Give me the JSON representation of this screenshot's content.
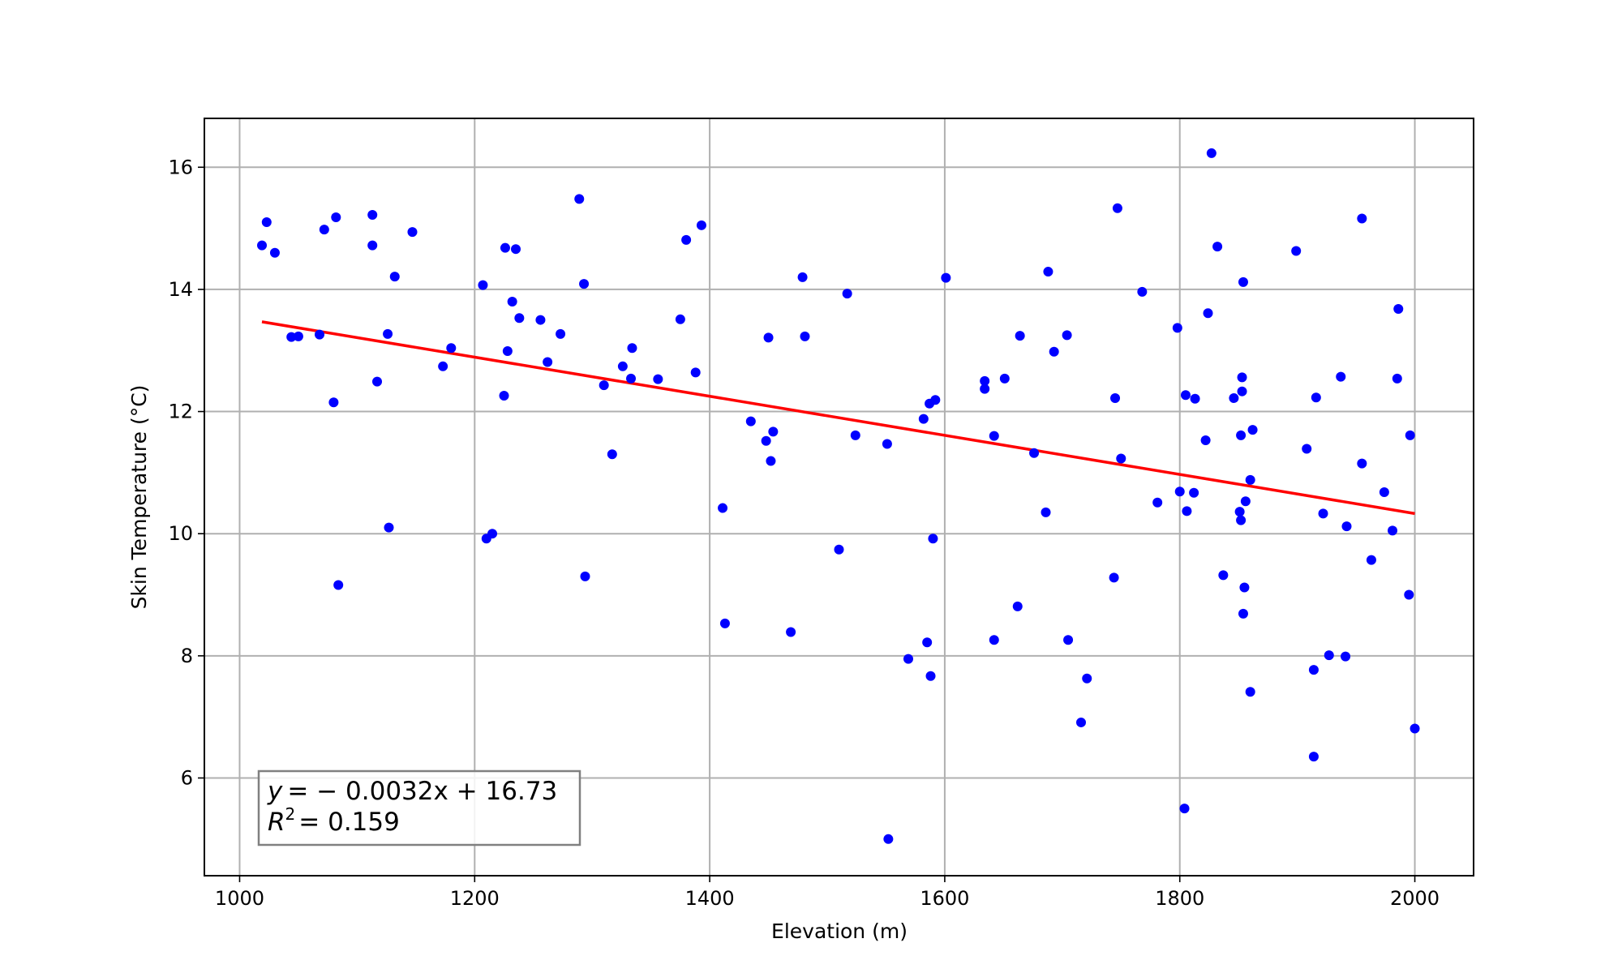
{
  "chart_data": {
    "type": "scatter",
    "xlabel": "Elevation (m)",
    "ylabel": "Skin Temperature (°C)",
    "xlim": [
      970,
      2050
    ],
    "ylim": [
      4.4,
      16.8
    ],
    "xticks": [
      1000,
      1200,
      1400,
      1600,
      1800,
      2000
    ],
    "yticks": [
      6,
      8,
      10,
      12,
      14,
      16
    ],
    "grid": true,
    "point_color": "#0000ff",
    "line_color": "#ff0000",
    "points": [
      [
        1019,
        14.72
      ],
      [
        1023,
        15.1
      ],
      [
        1030,
        14.6
      ],
      [
        1044,
        13.22
      ],
      [
        1050,
        13.23
      ],
      [
        1068,
        13.26
      ],
      [
        1072,
        14.98
      ],
      [
        1080,
        12.15
      ],
      [
        1082,
        15.18
      ],
      [
        1084,
        9.16
      ],
      [
        1113,
        15.22
      ],
      [
        1113,
        14.72
      ],
      [
        1117,
        12.49
      ],
      [
        1126,
        13.27
      ],
      [
        1127,
        10.1
      ],
      [
        1132,
        14.21
      ],
      [
        1147,
        14.94
      ],
      [
        1173,
        12.74
      ],
      [
        1180,
        13.04
      ],
      [
        1207,
        14.07
      ],
      [
        1210,
        9.92
      ],
      [
        1215,
        10.0
      ],
      [
        1225,
        12.26
      ],
      [
        1226,
        14.68
      ],
      [
        1228,
        12.99
      ],
      [
        1232,
        13.8
      ],
      [
        1235,
        14.66
      ],
      [
        1238,
        13.53
      ],
      [
        1256,
        13.5
      ],
      [
        1262,
        12.81
      ],
      [
        1273,
        13.27
      ],
      [
        1289,
        15.48
      ],
      [
        1293,
        14.09
      ],
      [
        1294,
        9.3
      ],
      [
        1310,
        12.43
      ],
      [
        1317,
        11.3
      ],
      [
        1326,
        12.74
      ],
      [
        1333,
        12.54
      ],
      [
        1334,
        13.04
      ],
      [
        1356,
        12.53
      ],
      [
        1375,
        13.51
      ],
      [
        1380,
        14.81
      ],
      [
        1388,
        12.64
      ],
      [
        1393,
        15.05
      ],
      [
        1411,
        10.42
      ],
      [
        1413,
        8.53
      ],
      [
        1435,
        11.84
      ],
      [
        1448,
        11.52
      ],
      [
        1450,
        13.21
      ],
      [
        1452,
        11.19
      ],
      [
        1454,
        11.67
      ],
      [
        1469,
        8.39
      ],
      [
        1479,
        14.2
      ],
      [
        1481,
        13.23
      ],
      [
        1510,
        9.74
      ],
      [
        1517,
        13.93
      ],
      [
        1524,
        11.61
      ],
      [
        1551,
        11.47
      ],
      [
        1552,
        5.0
      ],
      [
        1569,
        7.95
      ],
      [
        1582,
        11.88
      ],
      [
        1585,
        8.22
      ],
      [
        1587,
        12.13
      ],
      [
        1588,
        7.67
      ],
      [
        1590,
        9.92
      ],
      [
        1592,
        12.19
      ],
      [
        1601,
        14.19
      ],
      [
        1634,
        12.37
      ],
      [
        1634,
        12.5
      ],
      [
        1642,
        11.6
      ],
      [
        1642,
        8.26
      ],
      [
        1651,
        12.54
      ],
      [
        1662,
        8.81
      ],
      [
        1664,
        13.24
      ],
      [
        1676,
        11.32
      ],
      [
        1686,
        10.35
      ],
      [
        1688,
        14.29
      ],
      [
        1693,
        12.98
      ],
      [
        1704,
        13.25
      ],
      [
        1705,
        8.26
      ],
      [
        1716,
        6.91
      ],
      [
        1721,
        7.63
      ],
      [
        1744,
        9.28
      ],
      [
        1745,
        12.22
      ],
      [
        1747,
        15.33
      ],
      [
        1750,
        11.23
      ],
      [
        1768,
        13.96
      ],
      [
        1781,
        10.51
      ],
      [
        1798,
        13.37
      ],
      [
        1800,
        10.69
      ],
      [
        1804,
        5.5
      ],
      [
        1805,
        12.27
      ],
      [
        1806,
        10.37
      ],
      [
        1812,
        10.67
      ],
      [
        1813,
        12.21
      ],
      [
        1822,
        11.53
      ],
      [
        1824,
        13.61
      ],
      [
        1827,
        16.23
      ],
      [
        1832,
        14.7
      ],
      [
        1837,
        9.32
      ],
      [
        1846,
        12.22
      ],
      [
        1851,
        10.36
      ],
      [
        1852,
        10.22
      ],
      [
        1852,
        11.61
      ],
      [
        1853,
        12.56
      ],
      [
        1853,
        12.33
      ],
      [
        1854,
        14.12
      ],
      [
        1854,
        8.69
      ],
      [
        1855,
        9.12
      ],
      [
        1856,
        10.53
      ],
      [
        1860,
        10.88
      ],
      [
        1860,
        7.41
      ],
      [
        1862,
        11.7
      ],
      [
        1899,
        14.63
      ],
      [
        1908,
        11.39
      ],
      [
        1914,
        6.35
      ],
      [
        1914,
        7.77
      ],
      [
        1916,
        12.23
      ],
      [
        1922,
        10.33
      ],
      [
        1927,
        8.01
      ],
      [
        1937,
        12.57
      ],
      [
        1941,
        7.99
      ],
      [
        1942,
        10.12
      ],
      [
        1955,
        11.15
      ],
      [
        1955,
        15.16
      ],
      [
        1963,
        9.57
      ],
      [
        1974,
        10.68
      ],
      [
        1981,
        10.05
      ],
      [
        1985,
        12.54
      ],
      [
        1986,
        13.68
      ],
      [
        1995,
        9.0
      ],
      [
        1996,
        11.61
      ],
      [
        2000,
        6.81
      ]
    ],
    "fit": {
      "slope": -0.0032,
      "intercept": 16.73,
      "x_range": [
        1019,
        2000
      ]
    },
    "annotation": {
      "line1_lhs": "y",
      "line1_rhs": "= − 0.0032x + 16.73",
      "line2_lhs": "R",
      "line2_sup": "2",
      "line2_rhs": "= 0.159",
      "position": "bottom-left"
    }
  }
}
